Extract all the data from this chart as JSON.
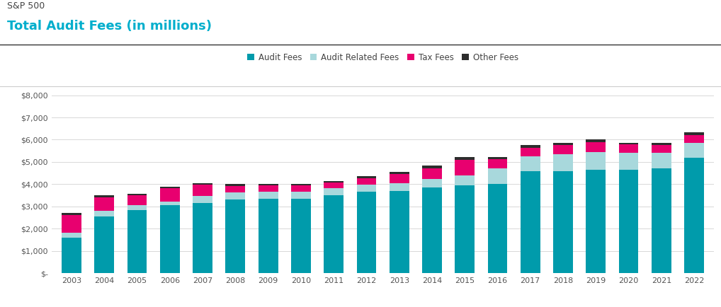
{
  "title_top": "S&P 500",
  "title_main": "Total Audit Fees (in millions)",
  "years": [
    2003,
    2004,
    2005,
    2006,
    2007,
    2008,
    2009,
    2010,
    2011,
    2012,
    2013,
    2014,
    2015,
    2016,
    2017,
    2018,
    2019,
    2020,
    2021,
    2022
  ],
  "audit_fees": [
    1600,
    2550,
    2850,
    3050,
    3150,
    3300,
    3350,
    3350,
    3500,
    3650,
    3700,
    3850,
    3950,
    4000,
    4600,
    4600,
    4650,
    4650,
    4700,
    5200
  ],
  "audit_related_fees": [
    230,
    270,
    200,
    180,
    320,
    320,
    310,
    310,
    320,
    330,
    330,
    400,
    450,
    700,
    650,
    750,
    800,
    750,
    700,
    650
  ],
  "tax_fees": [
    780,
    600,
    450,
    600,
    500,
    310,
    280,
    280,
    250,
    280,
    430,
    460,
    700,
    430,
    380,
    420,
    450,
    380,
    370,
    360
  ],
  "other_fees": [
    90,
    80,
    60,
    55,
    90,
    80,
    80,
    80,
    70,
    90,
    100,
    120,
    120,
    95,
    120,
    90,
    130,
    80,
    80,
    130
  ],
  "colors": {
    "audit_fees": "#009BAB",
    "audit_related_fees": "#A8D8DC",
    "tax_fees": "#E8006F",
    "other_fees": "#2d2d2d"
  },
  "ylim": [
    0,
    8000
  ],
  "yticks": [
    0,
    1000,
    2000,
    3000,
    4000,
    5000,
    6000,
    7000,
    8000
  ],
  "background_color": "#ffffff",
  "grid_color": "#d8d8d8",
  "title_color": "#00AECC",
  "title_top_color": "#444444"
}
